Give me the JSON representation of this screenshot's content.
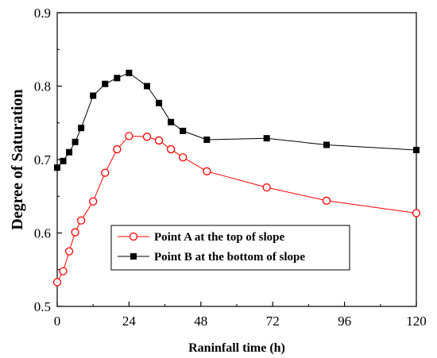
{
  "chart_data": {
    "type": "line",
    "title": "",
    "xlabel": "Raninfall time (h)",
    "ylabel": "Degree of Saturation",
    "xlim": [
      0,
      120
    ],
    "ylim": [
      0.5,
      0.9
    ],
    "xticks": [
      0,
      24,
      48,
      72,
      96,
      120
    ],
    "xtick_labels": [
      "0",
      "24",
      "48",
      "72",
      "96",
      "120"
    ],
    "yticks": [
      0.5,
      0.6,
      0.7,
      0.8,
      0.9
    ],
    "ytick_labels": [
      "0.5",
      "0.6",
      "0.7",
      "0.8",
      "0.9"
    ],
    "grid": false,
    "legend_position": "lower-center",
    "series": [
      {
        "name": "Point A at the top of slope",
        "color": "#ff0000",
        "marker": "open-circle",
        "x": [
          0,
          2,
          4,
          6,
          8,
          12,
          16,
          20,
          24,
          30,
          34,
          38,
          42,
          50,
          70,
          90,
          120
        ],
        "y": [
          0.533,
          0.548,
          0.575,
          0.601,
          0.617,
          0.643,
          0.682,
          0.714,
          0.732,
          0.731,
          0.726,
          0.714,
          0.703,
          0.684,
          0.662,
          0.644,
          0.627
        ]
      },
      {
        "name": "Point B at the bottom of slope",
        "color": "#000000",
        "marker": "filled-square",
        "x": [
          0,
          2,
          4,
          6,
          8,
          12,
          16,
          20,
          24,
          30,
          34,
          38,
          42,
          50,
          70,
          90,
          120
        ],
        "y": [
          0.689,
          0.698,
          0.71,
          0.724,
          0.743,
          0.787,
          0.803,
          0.811,
          0.818,
          0.8,
          0.777,
          0.751,
          0.739,
          0.727,
          0.729,
          0.72,
          0.713
        ]
      }
    ]
  }
}
